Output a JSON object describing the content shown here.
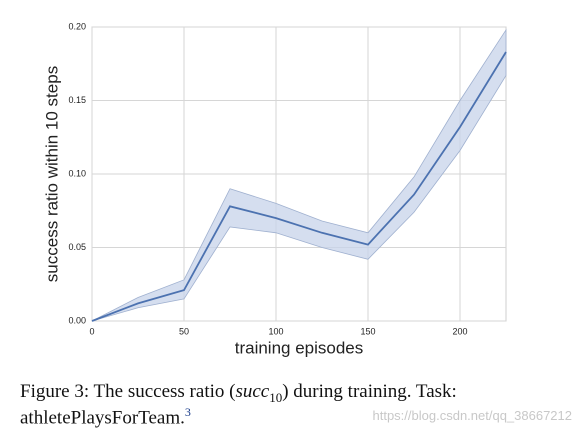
{
  "chart_data": {
    "type": "line",
    "x": [
      0,
      25,
      50,
      75,
      100,
      125,
      150,
      175,
      200,
      225
    ],
    "series": [
      {
        "color": "#4c72b0",
        "values": [
          0,
          0.012,
          0.021,
          0.078,
          0.07,
          0.06,
          0.052,
          0.086,
          0.132,
          0.183
        ],
        "lower": [
          0,
          0.009,
          0.015,
          0.064,
          0.06,
          0.05,
          0.042,
          0.074,
          0.116,
          0.167
        ],
        "upper": [
          0,
          0.016,
          0.028,
          0.09,
          0.08,
          0.068,
          0.06,
          0.098,
          0.15,
          0.198
        ]
      }
    ],
    "band_color": "#c7d3ea",
    "xlabel": "training episodes",
    "ylabel": "success ratio within 10 steps",
    "xlim": [
      0,
      225
    ],
    "xticks": [
      0,
      50,
      100,
      150,
      200
    ],
    "ylim": [
      0,
      0.2
    ],
    "yticks": [
      {
        "value": 0,
        "label": "0.00"
      },
      {
        "value": 0.05,
        "label": "0.05"
      },
      {
        "value": 0.1,
        "label": "0.10"
      },
      {
        "value": 0.15,
        "label": "0.15"
      },
      {
        "value": 0.2,
        "label": "0.20"
      }
    ],
    "grid": true
  },
  "caption": {
    "prefix": "Figure 3: The success ratio (",
    "math": "succ",
    "subscript": "10",
    "middle": ") during training. Task:",
    "second_line": "athletePlaysForTeam.",
    "footnote": "3"
  },
  "watermark": "https://blog.csdn.net/qq_38667212"
}
